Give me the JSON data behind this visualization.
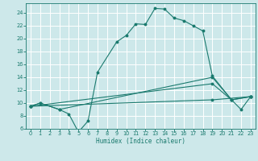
{
  "xlabel": "Humidex (Indice chaleur)",
  "bg_color": "#cde8ea",
  "grid_color": "#ffffff",
  "line_color": "#1a7a6e",
  "xlim": [
    -0.5,
    23.5
  ],
  "ylim": [
    6,
    25.5
  ],
  "x_ticks": [
    0,
    1,
    2,
    3,
    4,
    5,
    6,
    7,
    8,
    9,
    10,
    11,
    12,
    13,
    14,
    15,
    16,
    17,
    18,
    19,
    20,
    21,
    22,
    23
  ],
  "y_ticks": [
    6,
    8,
    10,
    12,
    14,
    16,
    18,
    20,
    22,
    24
  ],
  "line1_x": [
    0,
    1,
    3,
    4,
    5,
    6,
    7,
    9,
    10,
    11,
    12,
    13,
    14,
    15,
    16,
    17,
    18,
    19,
    21,
    22,
    23
  ],
  "line1_y": [
    9.5,
    10.0,
    9.0,
    8.3,
    5.5,
    7.2,
    14.8,
    19.5,
    20.5,
    22.3,
    22.2,
    24.7,
    24.6,
    23.2,
    22.8,
    22.0,
    21.2,
    14.2,
    10.5,
    9.0,
    11.0
  ],
  "line2_x": [
    0,
    1,
    3,
    19,
    21,
    23
  ],
  "line2_y": [
    9.5,
    10.0,
    9.0,
    14.0,
    10.5,
    11.0
  ],
  "line3_x": [
    0,
    19,
    21,
    23
  ],
  "line3_y": [
    9.5,
    13.0,
    10.5,
    11.0
  ],
  "line4_x": [
    0,
    19,
    23
  ],
  "line4_y": [
    9.5,
    10.5,
    11.0
  ]
}
